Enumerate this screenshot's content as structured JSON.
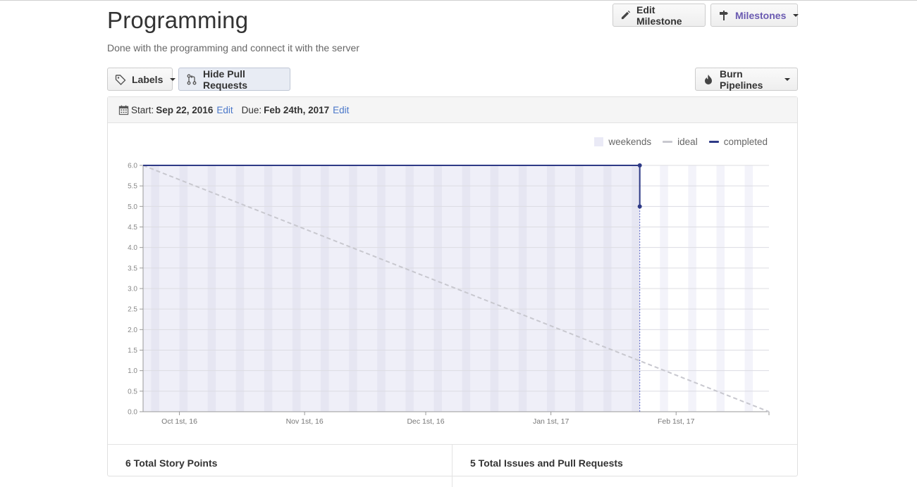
{
  "header": {
    "title": "Programming",
    "description": "Done with the programming and connect it with the server",
    "edit_button": "Edit Milestone",
    "milestones_button": "Milestones"
  },
  "toolbar": {
    "labels_button": "Labels",
    "hide_pr_button": "Hide Pull Requests",
    "burn_button": "Burn Pipelines"
  },
  "dates": {
    "start_label": "Start:",
    "start_value": "Sep 22, 2016",
    "due_label": "Due:",
    "due_value": "Feb 24th, 2017",
    "edit_link": "Edit"
  },
  "legend": {
    "weekends": "weekends",
    "ideal": "ideal",
    "completed": "completed"
  },
  "colors": {
    "accent_purple": "#6a5ab1",
    "completed_line": "#2e3a86",
    "ideal_line": "#c8c8cf",
    "weekend_band": "#eaeaf6",
    "link": "#4a77c9"
  },
  "chart_data": {
    "type": "line",
    "x_start": "2016-09-22",
    "x_end": "2017-02-24",
    "x_ticks": [
      "Oct 1st, 16",
      "Nov 1st, 16",
      "Dec 1st, 16",
      "Jan 1st, 17",
      "Feb 1st, 17"
    ],
    "ylim": [
      0,
      6
    ],
    "y_ticks": [
      "0.0",
      "0.5",
      "1.0",
      "1.5",
      "2.0",
      "2.5",
      "3.0",
      "3.5",
      "4.0",
      "4.5",
      "5.0",
      "5.5",
      "6.0"
    ],
    "series": [
      {
        "name": "ideal",
        "x": [
          "2016-09-22",
          "2017-02-24"
        ],
        "values": [
          6.0,
          0.0
        ]
      },
      {
        "name": "completed",
        "x": [
          "2016-09-22",
          "2017-01-23",
          "2017-01-23"
        ],
        "values": [
          6.0,
          6.0,
          5.0
        ]
      }
    ],
    "today": "2017-01-23",
    "grid": true,
    "legend_position": "top-right"
  },
  "stats": {
    "left": "6 Total Story Points",
    "right": "5 Total Issues and Pull Requests"
  }
}
